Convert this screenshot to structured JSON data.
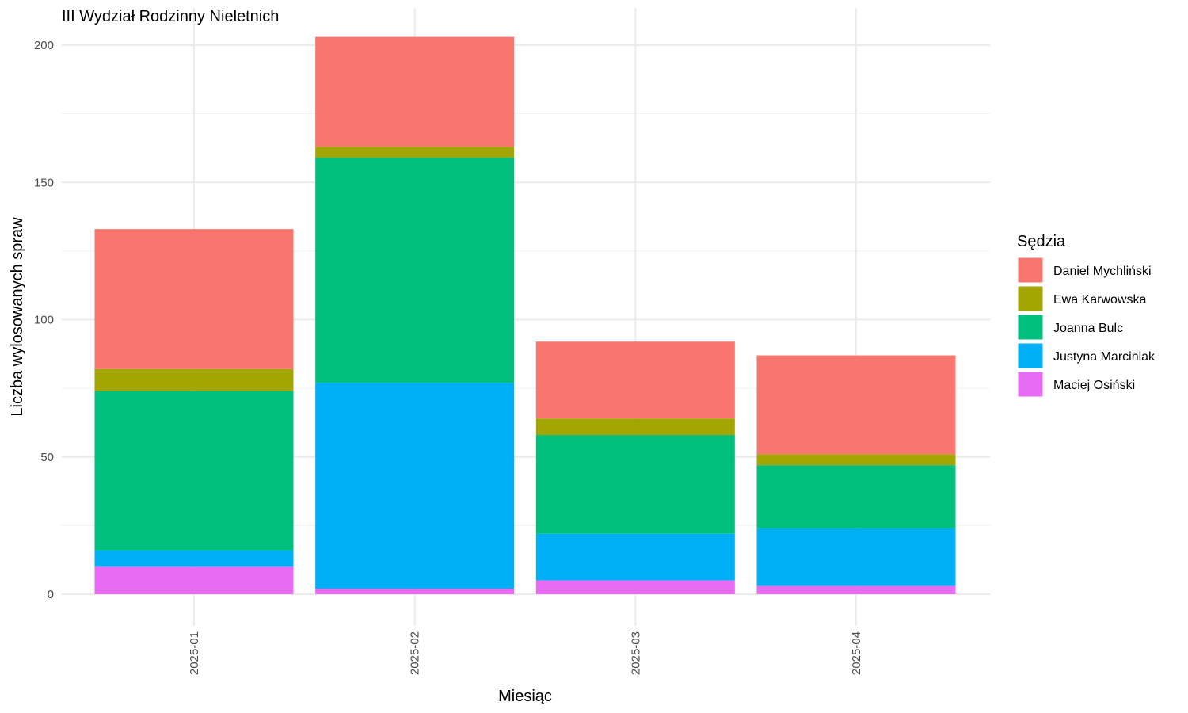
{
  "chart_data": {
    "type": "bar",
    "stacked": true,
    "title": "III Wydział Rodzinny Nieletnich",
    "xlabel": "Miesiąc",
    "ylabel": "Liczba wylosowanych spraw",
    "categories": [
      "2025-01",
      "2025-02",
      "2025-03",
      "2025-04"
    ],
    "ylim": [
      0,
      210
    ],
    "yticks": [
      0,
      50,
      100,
      150,
      200
    ],
    "grid": true,
    "legend": {
      "title": "Sędzia",
      "position": "right"
    },
    "series": [
      {
        "name": "Maciej Osiński",
        "color": "#E76BF3",
        "values": [
          10,
          2,
          5,
          3
        ]
      },
      {
        "name": "Justyna Marciniak",
        "color": "#00B0F6",
        "values": [
          6,
          75,
          17,
          21
        ]
      },
      {
        "name": "Joanna Bulc",
        "color": "#00BF7D",
        "values": [
          58,
          82,
          36,
          23
        ]
      },
      {
        "name": "Ewa Karwowska",
        "color": "#A3A500",
        "values": [
          8,
          4,
          6,
          4
        ]
      },
      {
        "name": "Daniel Mychliński",
        "color": "#F8766D",
        "values": [
          51,
          40,
          28,
          36
        ]
      }
    ],
    "legend_order": [
      "Daniel Mychliński",
      "Ewa Karwowska",
      "Joanna Bulc",
      "Justyna Marciniak",
      "Maciej Osiński"
    ]
  }
}
